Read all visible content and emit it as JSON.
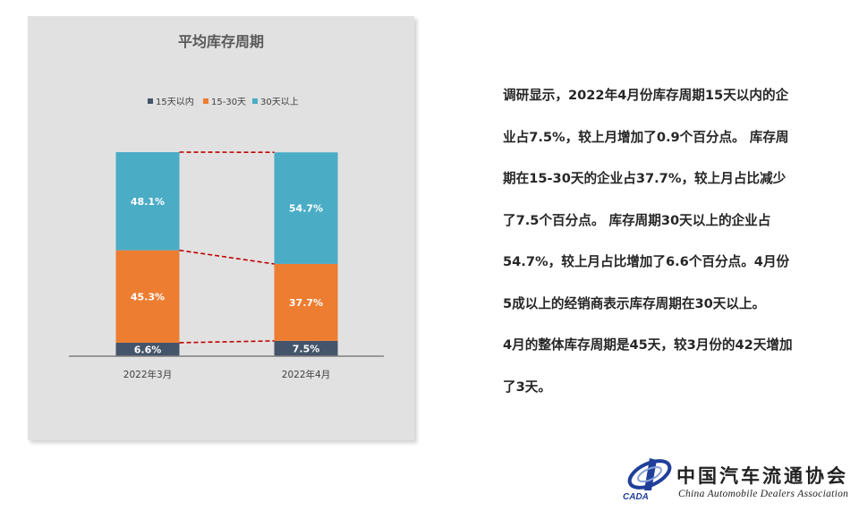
{
  "chart_data": {
    "type": "bar",
    "stacked": true,
    "percent": true,
    "title": "平均库存周期",
    "categories": [
      "2022年3月",
      "2022年4月"
    ],
    "series": [
      {
        "name": "15天以内",
        "values": [
          6.6,
          7.5
        ],
        "labels": [
          "6.6%",
          "7.5%"
        ],
        "color": "#44546a"
      },
      {
        "name": "15-30天",
        "values": [
          45.3,
          37.7
        ],
        "labels": [
          "45.3%",
          "37.7%"
        ],
        "color": "#ed7d31"
      },
      {
        "name": "30天以上",
        "values": [
          48.1,
          54.7
        ],
        "labels": [
          "48.1%",
          "54.7%"
        ],
        "color": "#4bacc6"
      }
    ],
    "legend_position": "top",
    "connector_lines": {
      "style": "dashed",
      "color": "#c00000"
    },
    "ylim": [
      0,
      100
    ],
    "grid": false
  },
  "description": {
    "lines": [
      "调研显示，2022年4月份库存周期15天以内的企",
      "业占7.5%，较上月增加了0.9个百分点。 库存周",
      "期在15-30天的企业占37.7%，较上月占比减少",
      "了7.5个百分点。 库存周期30天以上的企业占",
      "54.7%，较上月占比增加了6.6个百分点。4月份",
      "5成以上的经销商表示库存周期在30天以上。",
      "4月的整体库存周期是45天，较3月份的42天增加",
      "了3天。"
    ]
  },
  "logo": {
    "name_cn": "中国汽车流通协会",
    "name_en": "China Automobile Dealers Association",
    "abbr": "CADA"
  }
}
